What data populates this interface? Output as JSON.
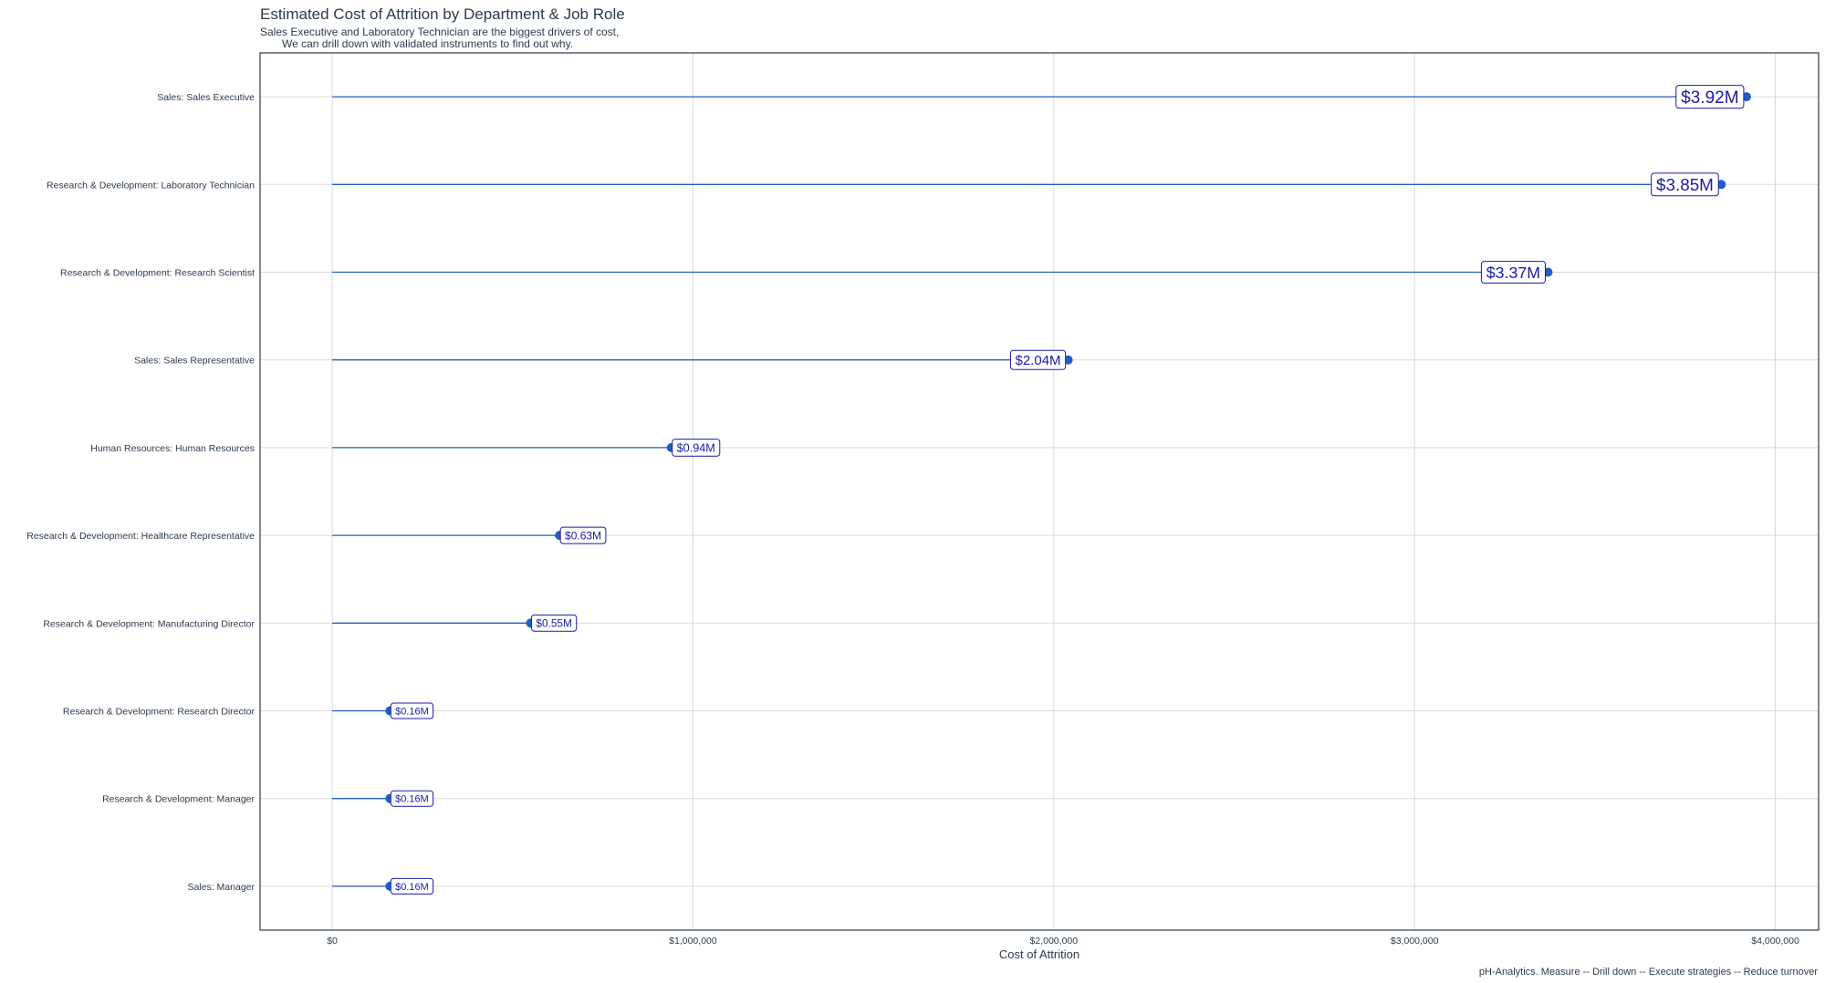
{
  "chart_data": {
    "type": "lollipop",
    "title": "Estimated Cost of Attrition by Department & Job Role",
    "subtitle_lines": [
      "Sales Executive and Laboratory Technician are the biggest drivers of cost,",
      "We can drill down with validated instruments to find out why."
    ],
    "xlabel": "Cost of Attrition",
    "ylabel": "",
    "caption": "pH-Analytics. Measure -- Drill down -- Execute strategies -- Reduce turnover",
    "xlim": [
      -200000,
      4120000
    ],
    "xticks": [
      0,
      1000000,
      2000000,
      3000000,
      4000000
    ],
    "xtick_labels": [
      "$0",
      "$1,000,000",
      "$2,000,000",
      "$3,000,000",
      "$4,000,000"
    ],
    "grid": true,
    "color": "#1f5fbf",
    "label_color": "#1a1aa8",
    "categories": [
      "Sales: Sales Executive",
      "Research & Development: Laboratory Technician",
      "Research & Development: Research Scientist",
      "Sales: Sales Representative",
      "Human Resources: Human Resources",
      "Research & Development: Healthcare Representative",
      "Research & Development: Manufacturing Director",
      "Research & Development: Research Director",
      "Research & Development: Manager",
      "Sales: Manager"
    ],
    "values": [
      3920000,
      3850000,
      3370000,
      2040000,
      940000,
      630000,
      550000,
      160000,
      160000,
      160000
    ],
    "value_labels": [
      "$3.92M",
      "$3.85M",
      "$3.37M",
      "$2.04M",
      "$0.94M",
      "$0.63M",
      "$0.55M",
      "$0.16M",
      "$0.16M",
      "$0.16M"
    ]
  }
}
